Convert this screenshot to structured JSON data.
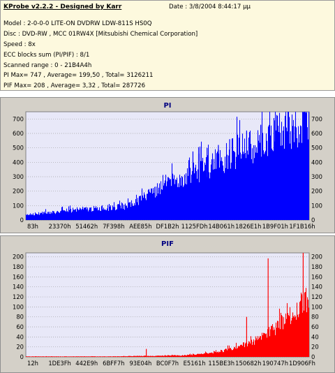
{
  "info": {
    "title": "KProbe v2.2.2 - Designed by Karr",
    "date": "Date : 3/8/2004 8:44:17 μμ",
    "model": "Model : 2-0-0-0 LITE-ON DVDRW LDW-811S  HS0Q",
    "disc": "Disc : DVD-RW , MCC 01RW4X  [Mitsubishi Chemical Corporation]",
    "speed": "Speed : 8x",
    "ecc": "ECC blocks sum (PI/PIF) : 8/1",
    "range": "Scanned range : 0 - 21B4A4h",
    "pi_stats": "PI Max= 747 , Average= 199,50 , Total= 3126211",
    "pif_stats": "PIF Max= 208 , Average= 3,32 , Total= 287726"
  },
  "chart_data": [
    {
      "type": "bar",
      "title": "PI",
      "color": "#0000ff",
      "ylim": [
        0,
        750
      ],
      "yticks": [
        0,
        100,
        200,
        300,
        400,
        500,
        600,
        700
      ],
      "xticks": [
        "83h",
        "23370h",
        "51462h",
        "7F398h",
        "AEE85h",
        "DF1B2h",
        "1125FDh",
        "14B061h",
        "1826E1h",
        "1B9F01h",
        "1F1B16h"
      ],
      "x": [
        0,
        0.05,
        0.1,
        0.15,
        0.2,
        0.25,
        0.3,
        0.35,
        0.4,
        0.45,
        0.5,
        0.55,
        0.6,
        0.65,
        0.7,
        0.75,
        0.8,
        0.85,
        0.9,
        0.95,
        1.0
      ],
      "values": [
        40,
        45,
        55,
        65,
        75,
        80,
        85,
        95,
        135,
        190,
        240,
        295,
        330,
        385,
        430,
        480,
        520,
        565,
        610,
        645,
        690
      ],
      "spikes": [
        [
          0.59,
          475
        ],
        [
          0.61,
          460
        ],
        [
          0.64,
          500
        ],
        [
          0.68,
          520
        ],
        [
          0.72,
          560
        ],
        [
          0.78,
          620
        ],
        [
          0.83,
          660
        ],
        [
          0.88,
          690
        ],
        [
          0.93,
          700
        ],
        [
          0.98,
          747
        ]
      ]
    },
    {
      "type": "bar",
      "title": "PIF",
      "color": "#ff0000",
      "ylim": [
        0,
        208
      ],
      "yticks": [
        0,
        20,
        40,
        60,
        80,
        100,
        120,
        140,
        160,
        180,
        200
      ],
      "xticks": [
        "12h",
        "1DE3Fh",
        "442E9h",
        "6BFF7h",
        "93E04h",
        "BC0F7h",
        "E5161h",
        "115BE3h",
        "150682h",
        "190747h",
        "1D906Fh"
      ],
      "x": [
        0,
        0.1,
        0.2,
        0.3,
        0.4,
        0.45,
        0.5,
        0.55,
        0.6,
        0.65,
        0.7,
        0.75,
        0.8,
        0.85,
        0.9,
        0.95,
        1.0
      ],
      "values": [
        1,
        1,
        1,
        1,
        2,
        2,
        3,
        3,
        5,
        8,
        13,
        20,
        30,
        45,
        65,
        90,
        118
      ],
      "spikes": [
        [
          0.425,
          16
        ],
        [
          0.78,
          80
        ],
        [
          0.856,
          197
        ],
        [
          0.98,
          208
        ]
      ]
    }
  ]
}
